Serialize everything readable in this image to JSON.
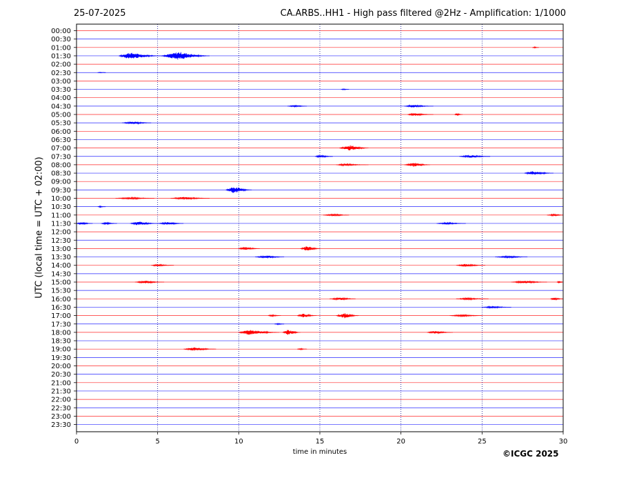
{
  "header": {
    "date": "25-07-2025",
    "title": "CA.ARBS..HH1 - High pass filtered @2Hz - Amplification: 1/1000"
  },
  "footer": {
    "copyright": "©ICGC 2025"
  },
  "chart_data": {
    "type": "line",
    "title": "CA.ARBS..HH1 - High pass filtered @2Hz - Amplification: 1/1000",
    "xlabel": "time in minutes",
    "ylabel": "UTC (local time = UTC + 02:00)",
    "xlim": [
      0,
      30
    ],
    "xticks": [
      0,
      5,
      10,
      15,
      20,
      25,
      30
    ],
    "grid": "vertical dotted lines at every 5 minutes",
    "colors": {
      "even_row": "#ff0000",
      "odd_row": "#0000ff",
      "grid": "#00008b"
    },
    "rows": [
      "00:00",
      "00:30",
      "01:00",
      "01:30",
      "02:00",
      "02:30",
      "03:00",
      "03:30",
      "04:00",
      "04:30",
      "05:00",
      "05:30",
      "06:00",
      "06:30",
      "07:00",
      "07:30",
      "08:00",
      "08:30",
      "09:00",
      "09:30",
      "10:00",
      "10:30",
      "11:00",
      "11:30",
      "12:00",
      "12:30",
      "13:00",
      "13:30",
      "14:00",
      "14:30",
      "15:00",
      "15:30",
      "16:00",
      "16:30",
      "17:00",
      "17:30",
      "18:00",
      "18:30",
      "19:00",
      "19:30",
      "20:00",
      "20:30",
      "21:00",
      "21:30",
      "22:00",
      "22:30",
      "23:00",
      "23:30"
    ],
    "events": [
      {
        "row": "01:00",
        "start": 28.1,
        "end": 28.5,
        "amp": 1
      },
      {
        "row": "01:30",
        "start": 2.6,
        "end": 5.2,
        "amp": 5
      },
      {
        "row": "01:30",
        "start": 5.2,
        "end": 8.2,
        "amp": 6
      },
      {
        "row": "02:30",
        "start": 1.3,
        "end": 1.8,
        "amp": 0.5
      },
      {
        "row": "03:30",
        "start": 16.3,
        "end": 16.8,
        "amp": 1
      },
      {
        "row": "04:30",
        "start": 13.0,
        "end": 14.2,
        "amp": 1.5
      },
      {
        "row": "04:30",
        "start": 20.2,
        "end": 22.0,
        "amp": 2
      },
      {
        "row": "05:00",
        "start": 20.4,
        "end": 22.0,
        "amp": 2
      },
      {
        "row": "05:00",
        "start": 23.3,
        "end": 23.8,
        "amp": 1.5
      },
      {
        "row": "05:30",
        "start": 2.8,
        "end": 4.6,
        "amp": 2
      },
      {
        "row": "07:00",
        "start": 16.2,
        "end": 18.0,
        "amp": 4
      },
      {
        "row": "07:30",
        "start": 14.7,
        "end": 15.8,
        "amp": 2
      },
      {
        "row": "07:30",
        "start": 23.6,
        "end": 25.5,
        "amp": 2
      },
      {
        "row": "08:00",
        "start": 16.0,
        "end": 18.0,
        "amp": 1.5
      },
      {
        "row": "08:00",
        "start": 20.2,
        "end": 21.8,
        "amp": 3
      },
      {
        "row": "08:30",
        "start": 27.6,
        "end": 29.4,
        "amp": 3
      },
      {
        "row": "09:30",
        "start": 9.2,
        "end": 10.8,
        "amp": 5
      },
      {
        "row": "10:00",
        "start": 2.4,
        "end": 4.8,
        "amp": 1.5
      },
      {
        "row": "10:00",
        "start": 5.8,
        "end": 8.2,
        "amp": 2
      },
      {
        "row": "10:30",
        "start": 1.3,
        "end": 1.8,
        "amp": 1
      },
      {
        "row": "11:00",
        "start": 15.2,
        "end": 16.8,
        "amp": 1.5
      },
      {
        "row": "11:00",
        "start": 29.0,
        "end": 30.0,
        "amp": 1.5
      },
      {
        "row": "11:30",
        "start": 0.0,
        "end": 1.0,
        "amp": 2
      },
      {
        "row": "11:30",
        "start": 1.5,
        "end": 2.5,
        "amp": 1.5
      },
      {
        "row": "11:30",
        "start": 3.3,
        "end": 5.0,
        "amp": 3
      },
      {
        "row": "11:30",
        "start": 5.0,
        "end": 6.6,
        "amp": 2
      },
      {
        "row": "11:30",
        "start": 22.2,
        "end": 24.0,
        "amp": 1.5
      },
      {
        "row": "13:00",
        "start": 10.0,
        "end": 11.3,
        "amp": 2.5
      },
      {
        "row": "13:00",
        "start": 13.8,
        "end": 15.0,
        "amp": 4
      },
      {
        "row": "13:30",
        "start": 11.0,
        "end": 12.8,
        "amp": 2
      },
      {
        "row": "13:30",
        "start": 25.8,
        "end": 27.8,
        "amp": 1.5
      },
      {
        "row": "14:00",
        "start": 4.6,
        "end": 6.0,
        "amp": 1.5
      },
      {
        "row": "14:00",
        "start": 23.4,
        "end": 25.2,
        "amp": 2
      },
      {
        "row": "15:00",
        "start": 3.6,
        "end": 5.4,
        "amp": 2
      },
      {
        "row": "15:00",
        "start": 26.8,
        "end": 29.0,
        "amp": 2
      },
      {
        "row": "15:00",
        "start": 29.6,
        "end": 30.0,
        "amp": 1.5
      },
      {
        "row": "16:00",
        "start": 15.6,
        "end": 17.2,
        "amp": 2
      },
      {
        "row": "16:00",
        "start": 23.4,
        "end": 25.4,
        "amp": 1.5
      },
      {
        "row": "16:00",
        "start": 29.2,
        "end": 30.0,
        "amp": 2
      },
      {
        "row": "16:30",
        "start": 25.0,
        "end": 26.8,
        "amp": 1.5
      },
      {
        "row": "17:00",
        "start": 11.8,
        "end": 12.6,
        "amp": 1.5
      },
      {
        "row": "17:00",
        "start": 13.6,
        "end": 14.8,
        "amp": 3
      },
      {
        "row": "17:00",
        "start": 16.0,
        "end": 17.4,
        "amp": 4
      },
      {
        "row": "17:00",
        "start": 23.0,
        "end": 25.0,
        "amp": 1.5
      },
      {
        "row": "17:30",
        "start": 12.2,
        "end": 12.8,
        "amp": 1
      },
      {
        "row": "18:00",
        "start": 10.0,
        "end": 12.5,
        "amp": 4
      },
      {
        "row": "18:00",
        "start": 12.7,
        "end": 13.8,
        "amp": 4
      },
      {
        "row": "18:00",
        "start": 21.6,
        "end": 23.2,
        "amp": 2
      },
      {
        "row": "19:00",
        "start": 6.6,
        "end": 8.6,
        "amp": 2.5
      },
      {
        "row": "19:00",
        "start": 13.6,
        "end": 14.2,
        "amp": 1
      }
    ]
  }
}
